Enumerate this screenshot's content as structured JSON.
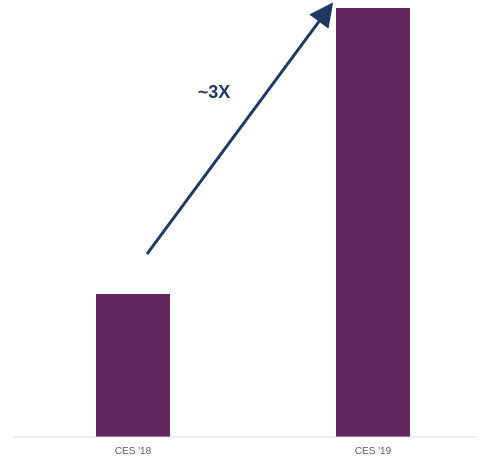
{
  "chart_data": {
    "type": "bar",
    "categories": [
      "CES '18",
      "CES '19"
    ],
    "values": [
      1,
      3
    ],
    "ylim": [
      0,
      3
    ],
    "grid": false,
    "annotation": "~3X",
    "colors": {
      "bar": "#62255C",
      "arrow": "#1F3864",
      "axis": "#D9D9D9",
      "tick_text": "#595959"
    }
  }
}
